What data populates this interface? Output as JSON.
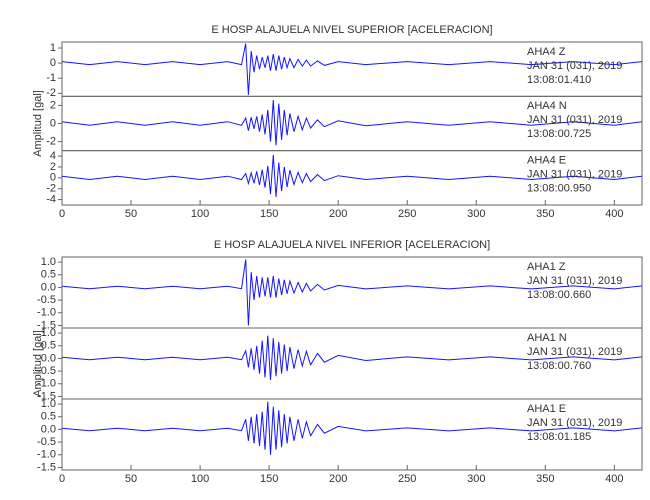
{
  "chart_data": [
    {
      "type": "line",
      "title": "E HOSP ALAJUELA NIVEL SUPERIOR [ACELERACION]",
      "y_label": "Amplitud [gal]",
      "xlim": [
        0,
        420
      ],
      "xticks": [
        0,
        50,
        100,
        150,
        200,
        250,
        300,
        350,
        400
      ],
      "x": [
        0,
        20,
        40,
        60,
        80,
        100,
        120,
        130,
        133,
        135,
        137,
        139,
        141,
        143,
        145,
        147,
        149,
        151,
        153,
        155,
        157,
        159,
        161,
        163,
        165,
        168,
        171,
        174,
        177,
        180,
        185,
        190,
        200,
        220,
        250,
        280,
        310,
        340,
        370,
        400,
        420
      ],
      "series": [
        {
          "name": "AHA4   Z",
          "date": "JAN 31 (031), 2019",
          "time": "13:08:01.410",
          "color": "#1414ff",
          "ylim": [
            -2.2,
            1.4
          ],
          "yticks": [
            -2,
            -1,
            0,
            1
          ],
          "values": [
            0.1,
            -0.1,
            0.1,
            -0.1,
            0.1,
            -0.1,
            0.1,
            -0.1,
            1.3,
            -2.1,
            0.8,
            -0.6,
            0.5,
            -0.4,
            0.4,
            -0.3,
            0.5,
            -0.5,
            0.6,
            -0.5,
            0.5,
            -0.4,
            0.4,
            -0.3,
            0.3,
            -0.3,
            0.25,
            -0.2,
            0.2,
            -0.2,
            0.15,
            -0.15,
            0.1,
            -0.1,
            0.1,
            -0.1,
            0.1,
            -0.1,
            0.1,
            -0.1,
            0.1
          ]
        },
        {
          "name": "AHA4   N",
          "date": "JAN 31 (031), 2019",
          "time": "13:08:00.725",
          "color": "#1414ff",
          "ylim": [
            -3,
            3
          ],
          "yticks": [
            -2,
            0,
            2
          ],
          "values": [
            0.2,
            -0.2,
            0.2,
            -0.2,
            0.2,
            -0.2,
            0.2,
            -0.2,
            0.6,
            -0.8,
            0.7,
            -0.6,
            0.8,
            -0.9,
            1.0,
            -1.2,
            1.5,
            -2.0,
            2.6,
            -2.4,
            2.2,
            -1.8,
            1.5,
            -1.3,
            1.1,
            -0.9,
            0.8,
            -0.7,
            0.6,
            -0.5,
            0.4,
            -0.35,
            0.3,
            -0.25,
            0.2,
            -0.2,
            0.2,
            -0.2,
            0.2,
            -0.2,
            0.2
          ]
        },
        {
          "name": "AHA4   E",
          "date": "JAN 31 (031), 2019",
          "time": "13:08:00.950",
          "color": "#1414ff",
          "ylim": [
            -5,
            5
          ],
          "yticks": [
            -4,
            -2,
            0,
            2,
            4
          ],
          "values": [
            0.3,
            -0.3,
            0.3,
            -0.3,
            0.3,
            -0.3,
            0.3,
            -0.3,
            0.8,
            -1.0,
            0.9,
            -1.0,
            1.2,
            -1.3,
            1.5,
            -1.8,
            2.2,
            -3.0,
            4.2,
            -3.5,
            2.8,
            -2.4,
            2.0,
            -1.7,
            1.4,
            -1.2,
            1.0,
            -0.9,
            0.8,
            -0.7,
            0.6,
            -0.5,
            0.4,
            -0.3,
            0.3,
            -0.3,
            0.3,
            -0.3,
            0.3,
            -0.3,
            0.3
          ]
        }
      ]
    },
    {
      "type": "line",
      "title": "E HOSP ALAJUELA NIVEL INFERIOR [ACELERACION]",
      "y_label": "Amplitud [gal]",
      "xlim": [
        0,
        420
      ],
      "xticks": [
        0,
        50,
        100,
        150,
        200,
        250,
        300,
        350,
        400
      ],
      "x": [
        0,
        20,
        40,
        60,
        80,
        100,
        120,
        130,
        133,
        135,
        137,
        139,
        141,
        143,
        145,
        147,
        149,
        151,
        153,
        155,
        157,
        159,
        161,
        163,
        165,
        168,
        171,
        174,
        177,
        180,
        185,
        190,
        200,
        220,
        250,
        280,
        310,
        340,
        370,
        400,
        420
      ],
      "series": [
        {
          "name": "AHA1   Z",
          "date": "JAN 31 (031), 2019",
          "time": "13:08:00.660",
          "color": "#1414ff",
          "ylim": [
            -1.6,
            1.2
          ],
          "yticks": [
            -1.5,
            {
              "value": -1,
              "label": "-1.0"
            },
            -0.5,
            {
              "value": 0,
              "label": "0.0"
            },
            0.5,
            {
              "value": 1,
              "label": "1.0"
            }
          ],
          "values": [
            0.05,
            -0.05,
            0.05,
            -0.05,
            0.05,
            -0.05,
            0.05,
            -0.05,
            1.1,
            -1.5,
            0.6,
            -0.5,
            0.45,
            -0.4,
            0.4,
            -0.35,
            0.4,
            -0.4,
            0.45,
            -0.4,
            0.35,
            -0.3,
            0.3,
            -0.25,
            0.25,
            -0.22,
            0.2,
            -0.18,
            0.16,
            -0.14,
            0.12,
            -0.1,
            0.08,
            -0.06,
            0.06,
            -0.06,
            0.06,
            -0.06,
            0.06,
            -0.06,
            0.06
          ]
        },
        {
          "name": "AHA1   N",
          "date": "JAN 31 (031), 2019",
          "time": "13:08:00.760",
          "color": "#1414ff",
          "ylim": [
            -1.6,
            1.2
          ],
          "yticks": [
            -1.5,
            {
              "value": -1,
              "label": "-1.0"
            },
            -0.5,
            {
              "value": 0,
              "label": "0.0"
            },
            0.5,
            {
              "value": 1,
              "label": "1.0"
            }
          ],
          "values": [
            0.05,
            -0.05,
            0.05,
            -0.05,
            0.05,
            -0.05,
            0.05,
            -0.05,
            0.3,
            -0.35,
            0.4,
            -0.45,
            0.5,
            -0.6,
            0.7,
            -0.75,
            0.9,
            -0.85,
            0.8,
            -0.7,
            0.65,
            -0.6,
            0.55,
            -0.5,
            0.45,
            -0.4,
            0.35,
            -0.3,
            0.28,
            -0.25,
            0.2,
            -0.15,
            0.12,
            -0.08,
            0.06,
            -0.06,
            0.06,
            -0.06,
            0.06,
            -0.06,
            0.06
          ]
        },
        {
          "name": "AHA1   E",
          "date": "JAN 31 (031), 2019",
          "time": "13:08:01.185",
          "color": "#1414ff",
          "ylim": [
            -1.6,
            1.2
          ],
          "yticks": [
            -1.5,
            {
              "value": -1,
              "label": "-1.0"
            },
            -0.5,
            {
              "value": 0,
              "label": "0.0"
            },
            0.5,
            {
              "value": 1,
              "label": "1.0"
            }
          ],
          "values": [
            0.05,
            -0.05,
            0.05,
            -0.05,
            0.05,
            -0.05,
            0.05,
            -0.05,
            0.4,
            -0.45,
            0.5,
            -0.55,
            0.6,
            -0.65,
            0.7,
            -0.8,
            1.1,
            -1.0,
            0.9,
            -0.8,
            0.75,
            -0.7,
            0.6,
            -0.55,
            0.5,
            -0.45,
            0.4,
            -0.35,
            0.3,
            -0.25,
            0.2,
            -0.15,
            0.12,
            -0.06,
            0.06,
            -0.06,
            0.06,
            -0.06,
            0.06,
            -0.06,
            0.06
          ]
        }
      ]
    }
  ]
}
